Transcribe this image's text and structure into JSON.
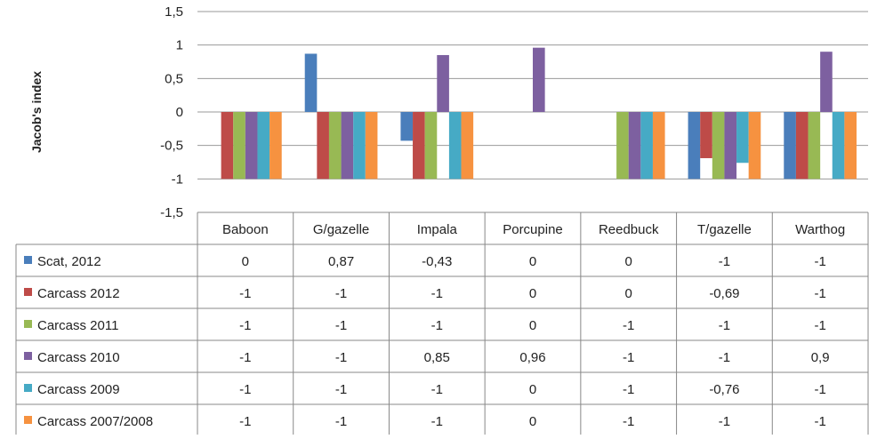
{
  "chart_data": {
    "type": "bar",
    "title": "",
    "xlabel": "",
    "ylabel": "Jacob's index",
    "ylim": [
      -1.5,
      1.5
    ],
    "yticks": [
      1.5,
      1,
      0.5,
      0,
      -0.5,
      -1,
      -1.5
    ],
    "ytick_labels": [
      "1,5",
      "1",
      "0,5",
      "0",
      "-0,5",
      "-1",
      "-1,5"
    ],
    "grid": true,
    "legend": "data-table-left",
    "categories": [
      "Baboon",
      "G/gazelle",
      "Impala",
      "Porcupine",
      "Reedbuck",
      "T/gazelle",
      "Warthog"
    ],
    "series": [
      {
        "name": "Scat, 2012",
        "color": "#4a7ebb",
        "values": [
          0,
          0.87,
          -0.43,
          0,
          0,
          -1,
          -1
        ],
        "labels": [
          "0",
          "0,87",
          "-0,43",
          "0",
          "0",
          "-1",
          "-1"
        ]
      },
      {
        "name": "Carcass 2012",
        "color": "#be4b48",
        "values": [
          -1,
          -1,
          -1,
          0,
          0,
          -0.69,
          -1
        ],
        "labels": [
          "-1",
          "-1",
          "-1",
          "0",
          "0",
          "-0,69",
          "-1"
        ]
      },
      {
        "name": "Carcass 2011",
        "color": "#98b954",
        "values": [
          -1,
          -1,
          -1,
          0,
          -1,
          -1,
          -1
        ],
        "labels": [
          "-1",
          "-1",
          "-1",
          "0",
          "-1",
          "-1",
          "-1"
        ]
      },
      {
        "name": "Carcass 2010",
        "color": "#7d60a0",
        "values": [
          -1,
          -1,
          0.85,
          0.96,
          -1,
          -1,
          0.9
        ],
        "labels": [
          "-1",
          "-1",
          "0,85",
          "0,96",
          "-1",
          "-1",
          "0,9"
        ]
      },
      {
        "name": "Carcass 2009",
        "color": "#46aac5",
        "values": [
          -1,
          -1,
          -1,
          0,
          -1,
          -0.76,
          -1
        ],
        "labels": [
          "-1",
          "-1",
          "-1",
          "0",
          "-1",
          "-0,76",
          "-1"
        ]
      },
      {
        "name": "Carcass 2007/2008",
        "color": "#f69240",
        "values": [
          -1,
          -1,
          -1,
          0,
          -1,
          -1,
          -1
        ],
        "labels": [
          "-1",
          "-1",
          "-1",
          "0",
          "-1",
          "-1",
          "-1"
        ]
      }
    ]
  }
}
